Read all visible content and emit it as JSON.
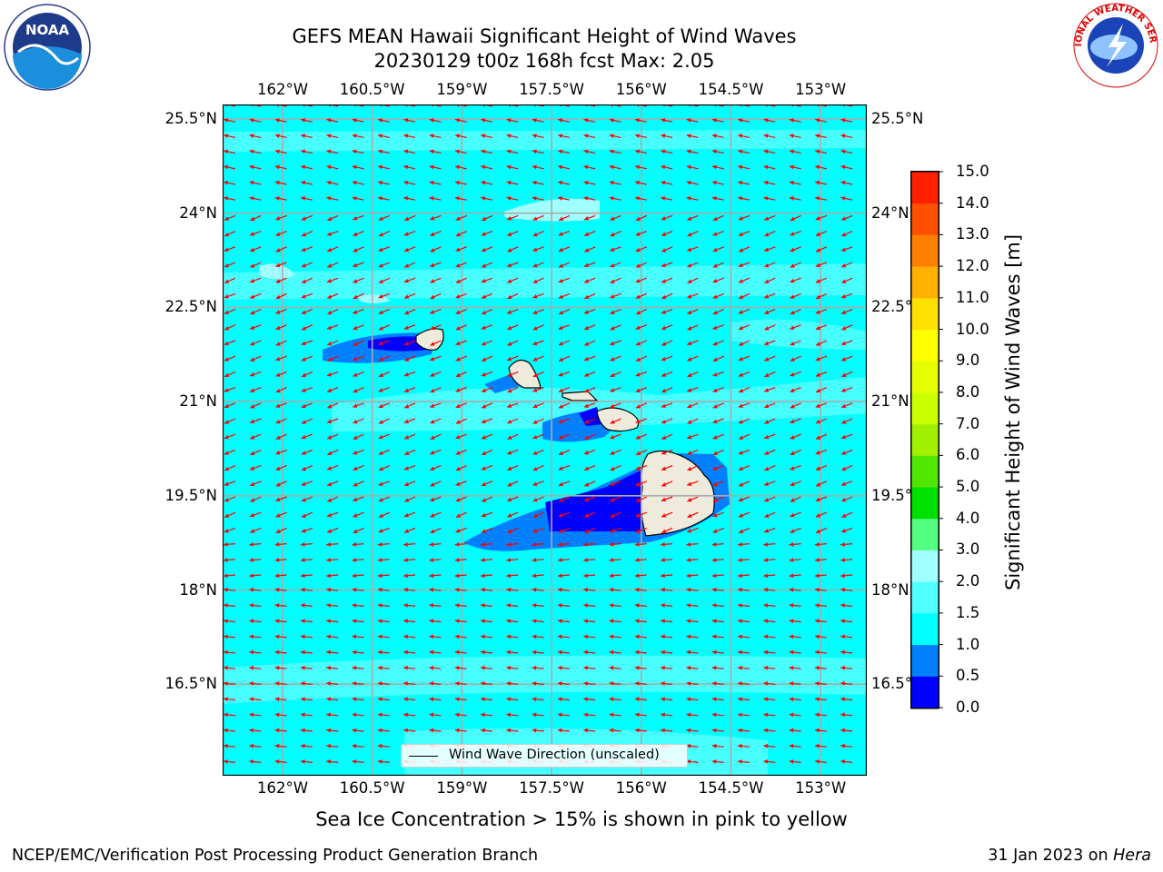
{
  "header": {
    "title_line1": "GEFS MEAN Hawaii Significant Height of Wind Waves",
    "title_line2": "20230129 t00z 168h fcst   Max: 2.05"
  },
  "logos": {
    "left": {
      "name": "noaa-logo",
      "text": "NOAA",
      "ring_text": "NATIONAL OCEANIC AND ATMOSPHERIC ADMINISTRATION · U.S. DEPARTMENT OF COMMERCE"
    },
    "right": {
      "name": "nws-logo",
      "ring_text": "NATIONAL WEATHER SERVICE"
    }
  },
  "map": {
    "lon_ticks": [
      "162°W",
      "160.5°W",
      "159°W",
      "157.5°W",
      "156°W",
      "154.5°W",
      "153°W"
    ],
    "lon_values": [
      -162,
      -160.5,
      -159,
      -157.5,
      -156,
      -154.5,
      -153
    ],
    "lat_ticks": [
      "25.5°N",
      "24°N",
      "22.5°N",
      "21°N",
      "19.5°N",
      "18°N",
      "16.5°N"
    ],
    "lat_values": [
      25.5,
      24,
      22.5,
      21,
      19.5,
      18,
      16.5
    ],
    "ocean_color": "#00FFFF",
    "land_color": "#EEEBDC",
    "vector_color": "#FF0000",
    "grid_color": "#AAAAAA",
    "legend_label": "Wind Wave Direction (unscaled)"
  },
  "colorbar": {
    "label": "Significant Height of Wind Waves [m]",
    "ticks": [
      "15.0",
      "14.0",
      "13.0",
      "12.0",
      "11.0",
      "10.0",
      "9.0",
      "8.0",
      "7.0",
      "6.0",
      "5.0",
      "4.0",
      "3.0",
      "2.0",
      "1.5",
      "1.0",
      "0.5",
      "0.0"
    ],
    "levels": [
      0.0,
      0.5,
      1.0,
      1.5,
      2.0,
      3.0,
      4.0,
      5.0,
      6.0,
      7.0,
      8.0,
      9.0,
      10.0,
      11.0,
      12.0,
      13.0,
      14.0,
      15.0
    ],
    "colors": [
      "#0000FF",
      "#0080FF",
      "#00FFFF",
      "#50FFFF",
      "#A0FFFF",
      "#55FF80",
      "#00E000",
      "#50E600",
      "#A0F000",
      "#CCFF00",
      "#E6FF00",
      "#FFFF00",
      "#FFE000",
      "#FFB000",
      "#FF8000",
      "#FF5000",
      "#FF2000"
    ]
  },
  "notes": {
    "sea_ice": "Sea Ice Concentration > 15% is shown in pink to yellow",
    "footer_left": "NCEP/EMC/Verification Post Processing Product Generation Branch",
    "footer_right_prefix": "31 Jan 2023 on ",
    "footer_right_italic": "Hera"
  }
}
